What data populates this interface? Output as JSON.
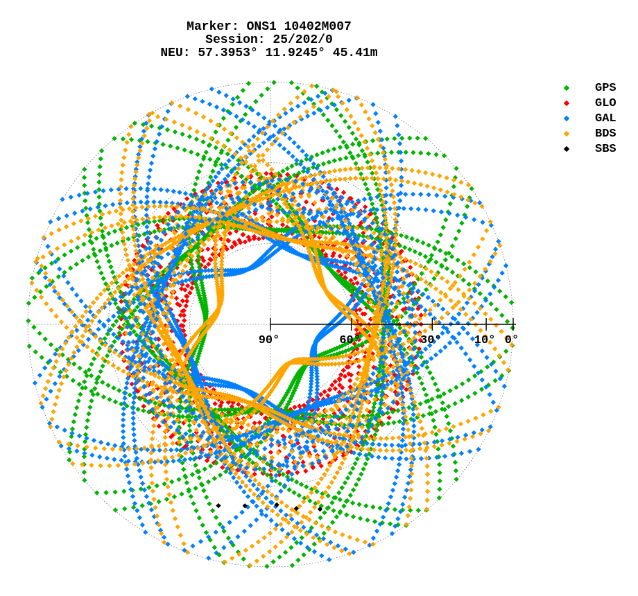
{
  "header": {
    "marker_line": "Marker: ONS1 10402M007",
    "session_line": "Session: 25/202/0",
    "position_line": "NEU: 57.3953° 11.9245° 45.41m"
  },
  "legend": {
    "items": [
      {
        "label": "GPS",
        "color": "#00b400"
      },
      {
        "label": "GLO",
        "color": "#ff0000"
      },
      {
        "label": "GAL",
        "color": "#0080ff"
      },
      {
        "label": "BDS",
        "color": "#ffa500"
      },
      {
        "label": "SBS",
        "color": "#000000"
      }
    ]
  },
  "chart_data": {
    "type": "scatter",
    "subtype": "polar-skyplot",
    "grid": true,
    "elevation_ticks": [
      {
        "elevation": 90,
        "label": "90°"
      },
      {
        "elevation": 60,
        "label": "60°"
      },
      {
        "elevation": 30,
        "label": "30°"
      },
      {
        "elevation": 10,
        "label": "10°"
      },
      {
        "elevation": 0,
        "label": "0°"
      }
    ],
    "elevation_circles": [
      0,
      30,
      60
    ],
    "elevation_range": [
      0,
      90
    ],
    "azimuth_range": [
      0,
      360
    ],
    "tracks": [
      {
        "system": "GLO",
        "kind": "ring",
        "center_el": 46,
        "el_amp": 12,
        "n_tracks": 9,
        "phase": 0.0
      },
      {
        "system": "GPS",
        "kind": "arc",
        "az_peaks": [
          0,
          45,
          90,
          135,
          180,
          225,
          270,
          315
        ],
        "max_el": [
          55,
          60,
          48,
          70,
          58,
          52,
          66,
          50
        ]
      },
      {
        "system": "GAL",
        "kind": "arc",
        "az_peaks": [
          20,
          65,
          110,
          155,
          200,
          245,
          290,
          335
        ],
        "max_el": [
          62,
          50,
          72,
          56,
          64,
          58,
          48,
          68
        ]
      },
      {
        "system": "BDS",
        "kind": "arc",
        "az_peaks": [
          10,
          55,
          100,
          150,
          195,
          240,
          285,
          330
        ],
        "max_el": [
          58,
          66,
          52,
          74,
          60,
          54,
          70,
          46
        ]
      },
      {
        "system": "BDS",
        "kind": "ring",
        "center_el": 44,
        "el_amp": 8,
        "n_tracks": 6,
        "phase": 0.5
      },
      {
        "system": "GAL",
        "kind": "ring",
        "center_el": 42,
        "el_amp": 6,
        "n_tracks": 4,
        "phase": 1.1
      },
      {
        "system": "SBS",
        "kind": "fixed",
        "points": [
          [
            196,
            20
          ],
          [
            188,
            22
          ],
          [
            178,
            23
          ],
          [
            172,
            21
          ],
          [
            165,
            19
          ]
        ]
      }
    ]
  }
}
